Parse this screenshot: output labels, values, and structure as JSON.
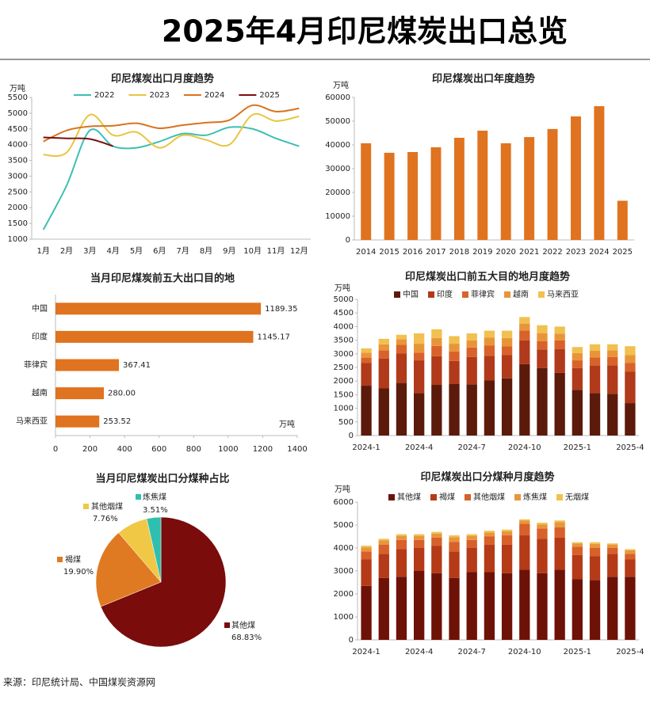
{
  "title": "2025年4月印尼煤炭出口总览",
  "source": "来源：印尼统计局、中国煤炭资源网",
  "chart_data": [
    {
      "type": "line",
      "title": "印尼煤炭出口月度趋势",
      "y_label": "万吨",
      "categories": [
        "1月",
        "2月",
        "3月",
        "4月",
        "5月",
        "6月",
        "7月",
        "8月",
        "9月",
        "10月",
        "11月",
        "12月"
      ],
      "ylim": [
        1000,
        5500
      ],
      "yticks": [
        1000,
        1500,
        2000,
        2500,
        3000,
        3500,
        4000,
        4500,
        5000,
        5500
      ],
      "legend": "top",
      "series": [
        {
          "name": "2022",
          "color": "#3dbfb2",
          "values": [
            1300,
            2700,
            4450,
            3950,
            3900,
            4100,
            4350,
            4300,
            4550,
            4500,
            4200,
            3950
          ]
        },
        {
          "name": "2023",
          "color": "#e9c440",
          "values": [
            3680,
            3750,
            4950,
            4300,
            4400,
            3900,
            4300,
            4150,
            4000,
            4950,
            4750,
            4900
          ]
        },
        {
          "name": "2024",
          "color": "#d9731e",
          "values": [
            4100,
            4450,
            4580,
            4600,
            4680,
            4520,
            4620,
            4700,
            4780,
            5250,
            5050,
            5150
          ]
        },
        {
          "name": "2025",
          "color": "#7a1010",
          "values": [
            4230,
            4200,
            4180,
            3950,
            null,
            null,
            null,
            null,
            null,
            null,
            null,
            null
          ]
        }
      ]
    },
    {
      "type": "bar",
      "title": "印尼煤炭出口年度趋势",
      "y_label": "万吨",
      "categories": [
        "2014",
        "2015",
        "2016",
        "2017",
        "2018",
        "2019",
        "2020",
        "2021",
        "2022",
        "2023",
        "2024",
        "2025"
      ],
      "values": [
        40700,
        36700,
        37000,
        39000,
        43000,
        46000,
        40700,
        43300,
        46700,
        52000,
        56300,
        16500
      ],
      "color": "#e0731f",
      "ylim": [
        0,
        60000
      ],
      "yticks": [
        0,
        10000,
        20000,
        30000,
        40000,
        50000,
        60000
      ]
    },
    {
      "type": "hbar",
      "title": "当月印尼煤炭前五大出口目的地",
      "x_label": "万吨",
      "categories": [
        "中国",
        "印度",
        "菲律宾",
        "越南",
        "马来西亚"
      ],
      "values": [
        1189.35,
        1145.17,
        367.41,
        280.0,
        253.52
      ],
      "value_labels": [
        "1189.35",
        "1145.17",
        "367.41",
        "280.00",
        "253.52"
      ],
      "color": "#e0731f",
      "xlim": [
        0,
        1400
      ],
      "xticks": [
        0,
        200,
        400,
        600,
        800,
        1000,
        1200,
        1400
      ]
    },
    {
      "type": "stacked_bar",
      "title": "印尼煤炭出口前五大目的地月度趋势",
      "y_label": "万吨",
      "legend": "top",
      "categories": [
        "2024-1",
        null,
        null,
        "2024-4",
        null,
        null,
        "2024-7",
        null,
        null,
        "2024-10",
        null,
        null,
        "2025-1",
        null,
        null,
        "2025-4"
      ],
      "ylim": [
        0,
        5000
      ],
      "yticks": [
        0,
        500,
        1000,
        1500,
        2000,
        2500,
        3000,
        3500,
        4000,
        4500,
        5000
      ],
      "series": [
        {
          "name": "中国",
          "color": "#5c1a0b",
          "values": [
            1830,
            1730,
            1930,
            1560,
            1860,
            1890,
            1880,
            2020,
            2100,
            2620,
            2480,
            2300,
            1680,
            1560,
            1530,
            1190
          ]
        },
        {
          "name": "印度",
          "color": "#b03a1a",
          "values": [
            830,
            1100,
            1080,
            1200,
            1050,
            850,
            1000,
            900,
            850,
            870,
            680,
            870,
            800,
            1010,
            1050,
            1150
          ]
        },
        {
          "name": "菲律宾",
          "color": "#d9622b",
          "values": [
            200,
            300,
            320,
            280,
            380,
            350,
            350,
            380,
            320,
            370,
            300,
            320,
            280,
            300,
            300,
            330
          ]
        },
        {
          "name": "越南",
          "color": "#e8953a",
          "values": [
            180,
            220,
            200,
            330,
            290,
            280,
            260,
            300,
            310,
            250,
            290,
            250,
            270,
            240,
            250,
            280
          ]
        },
        {
          "name": "马来西亚",
          "color": "#f1c050",
          "values": [
            160,
            200,
            170,
            380,
            320,
            280,
            260,
            250,
            270,
            240,
            300,
            260,
            220,
            240,
            220,
            330
          ]
        }
      ]
    },
    {
      "type": "pie",
      "title": "当月印尼煤炭出口分煤种占比",
      "categories": [
        "其他煤",
        "褐煤",
        "其他烟煤",
        "炼焦煤"
      ],
      "values": [
        68.83,
        19.9,
        7.76,
        3.51
      ],
      "value_labels": [
        "68.83%",
        "19.90%",
        "7.76%",
        "3.51%"
      ],
      "colors": [
        "#7a0c0c",
        "#e07a22",
        "#f0c845",
        "#2fbfb0"
      ]
    },
    {
      "type": "stacked_bar",
      "title": "印尼煤炭出口分煤种月度趋势",
      "y_label": "万吨",
      "legend": "top",
      "categories": [
        "2024-1",
        null,
        null,
        "2024-4",
        null,
        null,
        "2024-7",
        null,
        null,
        "2024-10",
        null,
        null,
        "2025-1",
        null,
        null,
        "2025-4"
      ],
      "ylim": [
        0,
        6000
      ],
      "yticks": [
        0,
        1000,
        2000,
        3000,
        4000,
        5000,
        6000
      ],
      "series": [
        {
          "name": "其他煤",
          "color": "#6e1208",
          "values": [
            2350,
            2700,
            2750,
            3000,
            2900,
            2700,
            2950,
            2950,
            2900,
            3050,
            2900,
            3050,
            2650,
            2600,
            2750,
            2750
          ]
        },
        {
          "name": "褐煤",
          "color": "#b53a18",
          "values": [
            1150,
            1050,
            1200,
            1000,
            1200,
            1150,
            1050,
            1200,
            1250,
            1500,
            1500,
            1400,
            1050,
            1050,
            1000,
            750
          ]
        },
        {
          "name": "其他烟煤",
          "color": "#d8602a",
          "values": [
            350,
            400,
            400,
            350,
            350,
            420,
            350,
            350,
            400,
            500,
            450,
            450,
            350,
            350,
            250,
            250
          ]
        },
        {
          "name": "炼焦煤",
          "color": "#e8963c",
          "values": [
            180,
            180,
            180,
            180,
            180,
            200,
            180,
            180,
            180,
            140,
            180,
            220,
            150,
            180,
            150,
            150
          ]
        },
        {
          "name": "无烟煤",
          "color": "#f2c24e",
          "values": [
            70,
            70,
            70,
            70,
            70,
            80,
            70,
            70,
            70,
            60,
            70,
            80,
            50,
            70,
            50,
            50
          ]
        }
      ]
    }
  ]
}
